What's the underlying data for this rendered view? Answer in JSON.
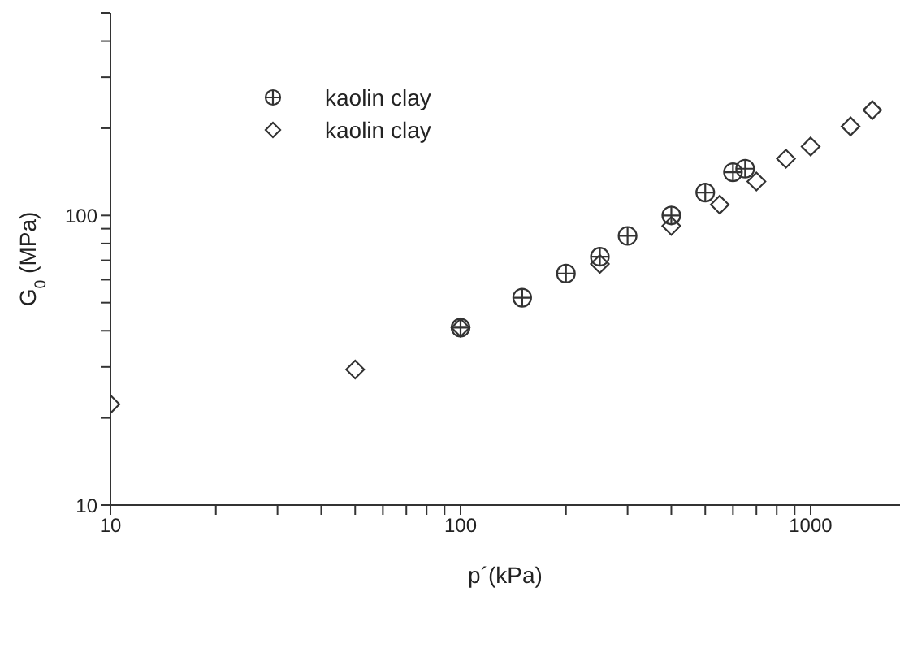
{
  "chart_data": {
    "type": "scatter",
    "xlabel": "p´(kPa)",
    "ylabel": "G$_{0}$ (MPa)",
    "log": "xy",
    "grid": false,
    "legend": "top left",
    "xlim": [
      10,
      1800
    ],
    "ylim": [
      10,
      500
    ],
    "xticks": [
      10,
      {
        "value": 20,
        "label": null
      },
      {
        "value": 30,
        "label": null
      },
      {
        "value": 40,
        "label": null
      },
      {
        "value": 50,
        "label": null
      },
      {
        "value": 60,
        "label": null
      },
      {
        "value": 70,
        "label": null
      },
      {
        "value": 80,
        "label": null
      },
      {
        "value": 90,
        "label": null
      },
      100,
      {
        "value": 200,
        "label": null
      },
      {
        "value": 300,
        "label": null
      },
      {
        "value": 400,
        "label": null
      },
      {
        "value": 500,
        "label": null
      },
      {
        "value": 600,
        "label": null
      },
      {
        "value": 700,
        "label": null
      },
      {
        "value": 800,
        "label": null
      },
      {
        "value": 900,
        "label": null
      },
      1000
    ],
    "yticks": [
      10,
      {
        "value": 20,
        "label": null
      },
      {
        "value": 30,
        "label": null
      },
      {
        "value": 40,
        "label": null
      },
      {
        "value": 50,
        "label": null
      },
      {
        "value": 60,
        "label": null
      },
      {
        "value": 70,
        "label": null
      },
      {
        "value": 80,
        "label": null
      },
      {
        "value": 90,
        "label": null
      },
      100,
      {
        "value": 200,
        "label": null
      },
      {
        "value": 300,
        "label": null
      },
      {
        "value": 400,
        "label": null
      },
      {
        "value": 500,
        "label": null
      }
    ],
    "series": [
      {
        "name": "kaolin clay",
        "color": "#333333",
        "marker": "circle",
        "x": [
          100,
          150,
          200,
          250,
          300,
          400,
          500,
          600,
          650
        ],
        "values": [
          41,
          52,
          63,
          72,
          85,
          100,
          120,
          141,
          145
        ]
      },
      {
        "name": "kaolin clay",
        "color": "#333333",
        "marker": "diamond",
        "x": [
          10,
          50,
          100,
          250,
          400,
          550,
          700,
          850,
          1000,
          1300,
          1500
        ],
        "values": [
          22.3,
          29.4,
          41,
          68,
          92,
          109,
          131,
          157,
          173,
          203,
          231
        ]
      }
    ]
  }
}
